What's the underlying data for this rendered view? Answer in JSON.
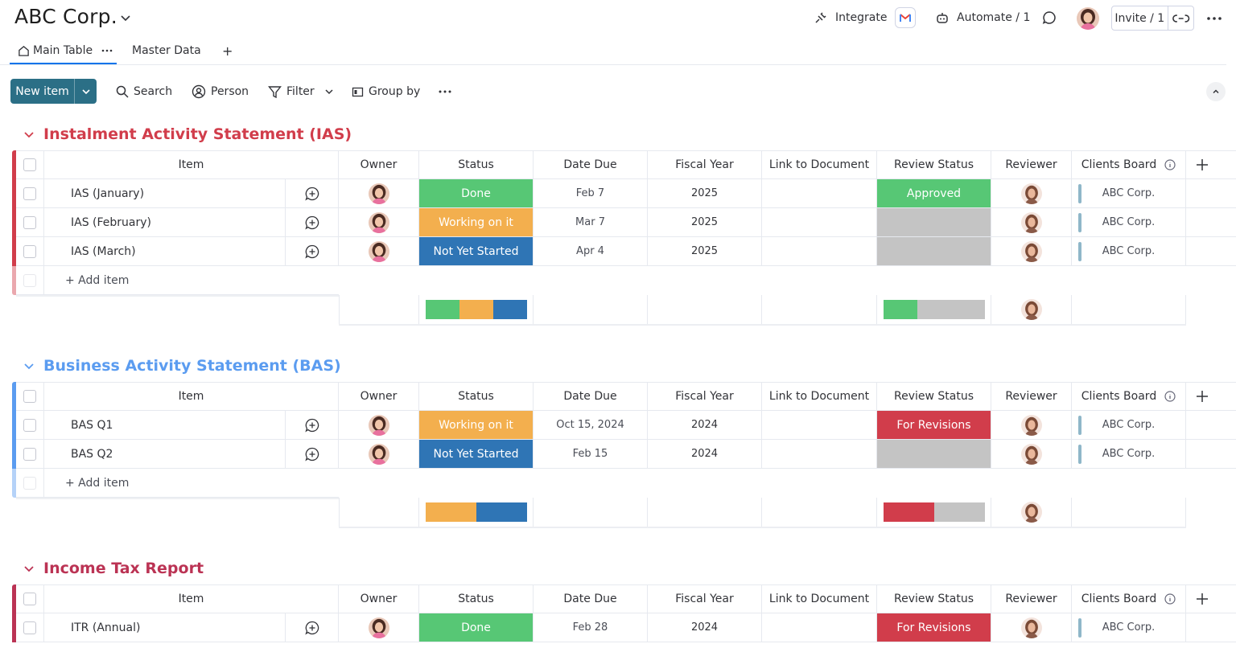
{
  "header": {
    "title": "ABC Corp.",
    "integrate_label": "Integrate",
    "automate_label": "Automate / 1",
    "invite_label": "Invite / 1"
  },
  "tabs": [
    {
      "label": "Main Table",
      "active": true
    },
    {
      "label": "Master Data",
      "active": false
    },
    {
      "label": "+"
    }
  ],
  "toolbar": {
    "new_item_label": "New item",
    "search_label": "Search",
    "person_label": "Person",
    "filter_label": "Filter",
    "group_by_label": "Group by"
  },
  "columns": [
    "Item",
    "Owner",
    "Status",
    "Date Due",
    "Fiscal Year",
    "Link to Document",
    "Review Status",
    "Reviewer",
    "Clients Board"
  ],
  "colors": {
    "done": "#57c775",
    "working": "#f3af4e",
    "not_started": "#2f75b5",
    "for_revisions": "#d13d4b",
    "empty": "#c4c4c4",
    "ias": "#d13d4b",
    "bas": "#5b9cf0",
    "itr": "#bb3354"
  },
  "groups": [
    {
      "title": "Instalment Activity Statement (IAS)",
      "color": "#d13d4b",
      "add_item_label": "+ Add item",
      "rows": [
        {
          "item": "IAS (January)",
          "status": "Done",
          "status_color": "#57c775",
          "date": "Feb 7",
          "fy": "2025",
          "review": "Approved",
          "review_color": "#57c775",
          "client": "ABC Corp."
        },
        {
          "item": "IAS (February)",
          "status": "Working on it",
          "status_color": "#f3af4e",
          "date": "Mar 7",
          "fy": "2025",
          "review": "",
          "review_color": "#c4c4c4",
          "client": "ABC Corp."
        },
        {
          "item": "IAS (March)",
          "status": "Not Yet Started",
          "status_color": "#2f75b5",
          "date": "Apr 4",
          "fy": "2025",
          "review": "",
          "review_color": "#c4c4c4",
          "client": "ABC Corp."
        }
      ]
    },
    {
      "title": "Business Activity Statement (BAS)",
      "color": "#5b9cf0",
      "add_item_label": "+ Add item",
      "rows": [
        {
          "item": "BAS Q1",
          "status": "Working on it",
          "status_color": "#f3af4e",
          "date": "Oct 15, 2024",
          "fy": "2024",
          "review": "For Revisions",
          "review_color": "#d13d4b",
          "client": "ABC Corp."
        },
        {
          "item": "BAS Q2",
          "status": "Not Yet Started",
          "status_color": "#2f75b5",
          "date": "Feb 15",
          "fy": "2024",
          "review": "",
          "review_color": "#c4c4c4",
          "client": "ABC Corp."
        }
      ]
    },
    {
      "title": "Income Tax Report",
      "color": "#bb3354",
      "rows": [
        {
          "item": "ITR (Annual)",
          "status": "Done",
          "status_color": "#57c775",
          "date": "Feb 28",
          "fy": "2024",
          "review": "For Revisions",
          "review_color": "#d13d4b",
          "client": "ABC Corp."
        }
      ]
    }
  ]
}
